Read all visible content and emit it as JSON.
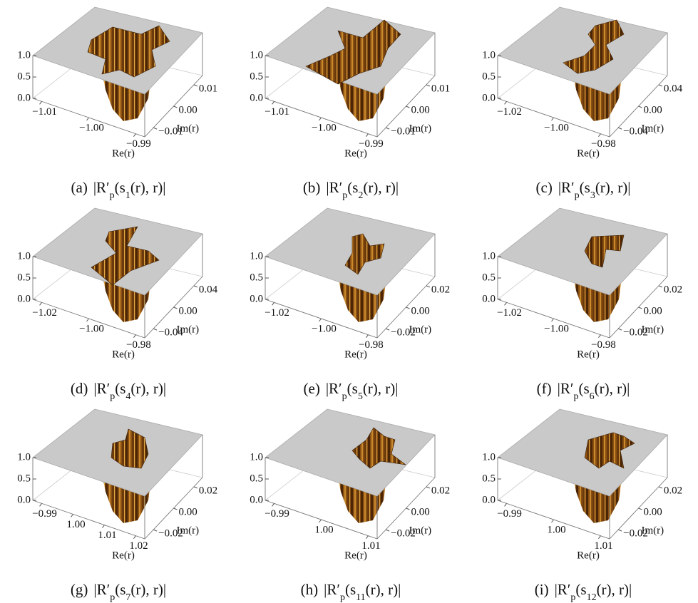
{
  "panels": [
    {
      "caption": {
        "tag": "(a)",
        "parts": [
          "|R′",
          "p",
          "(s",
          "1",
          "(r), r)|"
        ]
      },
      "z_ticks": [
        "0.0",
        "0.5",
        "1.0"
      ],
      "re_ticks": [
        "−1.01",
        "−1.00",
        "−0.99"
      ],
      "im_ticks": [
        "−0.01",
        "0.00",
        "0.01"
      ],
      "re_label": "Re(r)",
      "im_label": "Im(r)"
    },
    {
      "caption": {
        "tag": "(b)",
        "parts": [
          "|R′",
          "p",
          "(s",
          "2",
          "(r), r)|"
        ]
      },
      "z_ticks": [
        "0.0",
        "0.5",
        "1.0"
      ],
      "re_ticks": [
        "−1.01",
        "−1.00",
        "−0.99"
      ],
      "im_ticks": [
        "−0.01",
        "0.00",
        "0.01"
      ],
      "re_label": "Re(r)",
      "im_label": "Im(r)"
    },
    {
      "caption": {
        "tag": "(c)",
        "parts": [
          "|R′",
          "p",
          "(s",
          "3",
          "(r), r)|"
        ]
      },
      "z_ticks": [
        "0.0",
        "0.5",
        "1.0"
      ],
      "re_ticks": [
        "−1.02",
        "−1.00",
        "−0.98"
      ],
      "im_ticks": [
        "−0.04",
        "0.00",
        "0.04"
      ],
      "re_label": "Re(r)",
      "im_label": "Im(r)"
    },
    {
      "caption": {
        "tag": "(d)",
        "parts": [
          "|R′",
          "p",
          "(s",
          "4",
          "(r), r)|"
        ]
      },
      "z_ticks": [
        "0.0",
        "0.5",
        "1.0"
      ],
      "re_ticks": [
        "−1.02",
        "−1.00",
        "−0.98"
      ],
      "im_ticks": [
        "−0.04",
        "0.00",
        "0.04"
      ],
      "re_label": "Re(r)",
      "im_label": "Im(r)"
    },
    {
      "caption": {
        "tag": "(e)",
        "parts": [
          "|R′",
          "p",
          "(s",
          "5",
          "(r), r)|"
        ]
      },
      "z_ticks": [
        "0.0",
        "0.5",
        "1.0"
      ],
      "re_ticks": [
        "−1.02",
        "−1.00",
        "−0.98"
      ],
      "im_ticks": [
        "−0.02",
        "0.00",
        "0.02"
      ],
      "re_label": "Re(r)",
      "im_label": "Im(r)"
    },
    {
      "caption": {
        "tag": "(f)",
        "parts": [
          "|R′",
          "p",
          "(s",
          "6",
          "(r), r)|"
        ]
      },
      "z_ticks": [
        "0.0",
        "0.5",
        "1.0"
      ],
      "re_ticks": [
        "−1.02",
        "−1.00",
        "−0.98"
      ],
      "im_ticks": [
        "−0.02",
        "0.00",
        "0.02"
      ],
      "re_label": "Re(r)",
      "im_label": "Im(r)"
    },
    {
      "caption": {
        "tag": "(g)",
        "parts": [
          "|R′",
          "p",
          "(s",
          "7",
          "(r), r)|"
        ]
      },
      "z_ticks": [
        "0.0",
        "0.5",
        "1.0"
      ],
      "re_ticks": [
        "−0.99",
        "1.00",
        "1.01",
        "1.02"
      ],
      "im_ticks": [
        "−0.02",
        "0.00",
        "0.02"
      ],
      "re_label": "Re(r)",
      "im_label": "Im(r)"
    },
    {
      "caption": {
        "tag": "(h)",
        "parts": [
          "|R′",
          "p",
          "(s",
          "11",
          "(r), r)|"
        ]
      },
      "z_ticks": [
        "0.0",
        "0.5",
        "1.0"
      ],
      "re_ticks": [
        "−0.99",
        "1.00",
        "1.01"
      ],
      "im_ticks": [
        "−0.02",
        "0.00",
        "0.02"
      ],
      "re_label": "Re(r)",
      "im_label": "Im(r)"
    },
    {
      "caption": {
        "tag": "(i)",
        "parts": [
          "|R′",
          "p",
          "(s",
          "12",
          "(r), r)|"
        ]
      },
      "z_ticks": [
        "0.0",
        "0.5",
        "1.0"
      ],
      "re_ticks": [
        "−0.99",
        "1.00",
        "1.01"
      ],
      "im_ticks": [
        "−0.02",
        "0.00",
        "0.02"
      ],
      "re_label": "Re(r)",
      "im_label": "Im(r)"
    }
  ]
}
